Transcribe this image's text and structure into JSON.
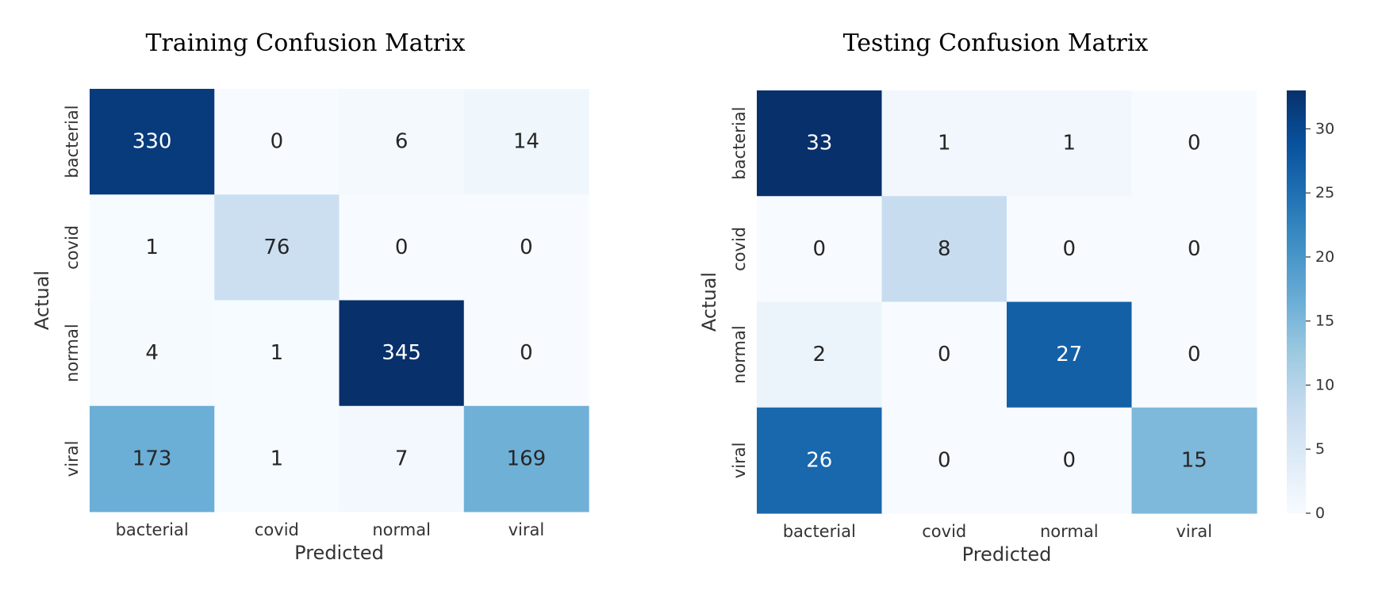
{
  "chart_data": [
    {
      "type": "heatmap",
      "title": "Training Confusion Matrix",
      "xlabel": "Predicted",
      "ylabel": "Actual",
      "x_categories": [
        "bacterial",
        "covid",
        "normal",
        "viral"
      ],
      "y_categories": [
        "bacterial",
        "covid",
        "normal",
        "viral"
      ],
      "values": [
        [
          330,
          0,
          6,
          14
        ],
        [
          1,
          76,
          0,
          0
        ],
        [
          4,
          1,
          345,
          0
        ],
        [
          173,
          1,
          7,
          169
        ]
      ],
      "colormap": "Blues",
      "color_range": [
        0,
        345
      ],
      "colorbar": false
    },
    {
      "type": "heatmap",
      "title": "Testing Confusion Matrix",
      "xlabel": "Predicted",
      "ylabel": "Actual",
      "x_categories": [
        "bacterial",
        "covid",
        "normal",
        "viral"
      ],
      "y_categories": [
        "bacterial",
        "covid",
        "normal",
        "viral"
      ],
      "values": [
        [
          33,
          1,
          1,
          0
        ],
        [
          0,
          8,
          0,
          0
        ],
        [
          2,
          0,
          27,
          0
        ],
        [
          26,
          0,
          0,
          15
        ]
      ],
      "colormap": "Blues",
      "color_range": [
        0,
        33
      ],
      "colorbar": true,
      "colorbar_ticks": [
        0,
        5,
        10,
        15,
        20,
        25,
        30
      ]
    }
  ]
}
